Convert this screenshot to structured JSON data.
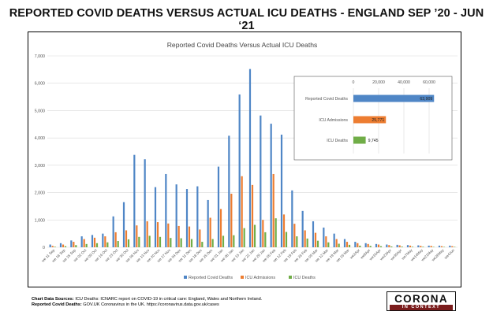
{
  "page_title": "REPORTED COVID DEATHS VERSUS ACTUAL ICU DEATHS - ENGLAND SEP ’20 - JUN ‘21",
  "colors": {
    "reported": "#4f86c6",
    "icu_admissions": "#ed7d31",
    "icu_deaths": "#70ad47",
    "grid": "#d9d9d9"
  },
  "footer": {
    "line1_label": "Chart Data Sources:",
    "line1_text": " ICU Deaths: ICNARC report on COVID-19 in critical care: England, Wales and Northern Ireland.",
    "line2_label": "Reported Covid Deaths:",
    "line2_text": " GOV.UK Coronavirus in the UK.  https://coronavirus.data.gov.uk/cases"
  },
  "logo": {
    "word": "CORONA",
    "sub": "IN CONTEXT"
  },
  "chart_data": [
    {
      "type": "bar",
      "title": "Reported Covid Deaths Versus Actual ICU Deaths",
      "xlabel": "",
      "ylabel": "",
      "ylim": [
        0,
        7000
      ],
      "yticks": [
        "0",
        "1,000",
        "2,000",
        "3,000",
        "4,000",
        "5,000",
        "6,000",
        "7,000"
      ],
      "ytick_values": [
        0,
        1000,
        2000,
        3000,
        4000,
        5000,
        6000,
        7000
      ],
      "grid": true,
      "legend_position": "bottom",
      "categories": [
        "we 11 Sep",
        "we 18 Sep",
        "we 25 Sep",
        "we 02 Oct",
        "we 09 Oct",
        "we 16 Oct",
        "we 23 Oct",
        "we 30 Oct",
        "we 06 Nov",
        "we 13 Nov",
        "we 20 Nov",
        "we 27 Nov",
        "we 04 Dec",
        "we 11 Dec",
        "we 18 Dec",
        "we 25 Dec",
        "we 01 Jan",
        "we 08 Jan",
        "we 15 Jan",
        "we 22 Jan",
        "we 29 Jan",
        "we 05 Feb",
        "we 12 Feb",
        "we 19 Feb",
        "we 26 Feb",
        "we 05 Mar",
        "we 12 Mar",
        "we 19 Mar",
        "we 26 Mar",
        "we 02 Apr",
        "we 09 Apr",
        "we 16 Apr",
        "we 23 Apr",
        "we 30 Apr",
        "we 07 May",
        "we 14 May",
        "we 21 May",
        "we 28 May",
        "we 04 Jun"
      ],
      "xtick_labels": [
        "we 11 Sep",
        "we 18 Sep",
        "we 25 Sep",
        "we 02 Oct",
        "we 09 Oct",
        "we 16 Oct",
        "we 23 Oct",
        "we 30 Oct",
        "we 06 Nov",
        "we 13 Nov",
        "we 20 Nov",
        "we 27 Nov",
        "we 04 Dec",
        "we 11 Dec",
        "we 18 Dec",
        "we 25 Dec",
        "we 01 Jan",
        "we 08 Jan",
        "we 15 Jan",
        "we 22 Jan",
        "we 29 Jan",
        "we 05 Feb",
        "we 12 Feb",
        "we 19 Feb",
        "we 26 Feb",
        "we 05 Mar",
        "we 12 Mar",
        "we 19 Mar",
        "we 26 Mar",
        "we2Apr",
        "we9Apr",
        "we16Apr",
        "we23Apr",
        "we30Apr",
        "we7May",
        "we14May",
        "we21May",
        "we28May",
        "we4Jun"
      ],
      "series": [
        {
          "name": "Reported Covid Deaths",
          "values": [
            100,
            150,
            250,
            400,
            450,
            500,
            1130,
            1650,
            3380,
            3220,
            2200,
            2680,
            2300,
            2130,
            2230,
            1730,
            2950,
            4080,
            5590,
            6520,
            4820,
            4520,
            4120,
            2080,
            1330,
            950,
            720,
            500,
            300,
            200,
            150,
            120,
            100,
            90,
            80,
            70,
            60,
            60,
            60
          ]
        },
        {
          "name": "ICU Admissions",
          "values": [
            50,
            100,
            200,
            300,
            350,
            400,
            550,
            620,
            800,
            950,
            920,
            870,
            780,
            760,
            650,
            1080,
            1400,
            1960,
            2600,
            2280,
            1000,
            2680,
            1200,
            860,
            620,
            530,
            400,
            300,
            200,
            150,
            120,
            100,
            80,
            70,
            60,
            50,
            50,
            40,
            40
          ]
        },
        {
          "name": "ICU Deaths",
          "values": [
            20,
            40,
            80,
            120,
            150,
            180,
            230,
            290,
            380,
            420,
            380,
            340,
            330,
            300,
            200,
            300,
            420,
            440,
            700,
            820,
            550,
            1060,
            560,
            400,
            320,
            240,
            180,
            130,
            90,
            60,
            50,
            40,
            30,
            25,
            20,
            20,
            15,
            15,
            15
          ]
        }
      ]
    },
    {
      "type": "bar",
      "orientation": "horizontal",
      "xlim": [
        0,
        60000
      ],
      "xticks": [
        "0",
        "20,000",
        "40,000",
        "60,000"
      ],
      "xtick_values": [
        0,
        20000,
        40000,
        60000
      ],
      "categories": [
        "Reported Covid Deaths",
        "ICU Admissions",
        "ICU Deaths"
      ],
      "values": [
        63909,
        25771,
        9745
      ],
      "value_labels": [
        "63,909",
        "25,771",
        "9,745"
      ]
    }
  ]
}
